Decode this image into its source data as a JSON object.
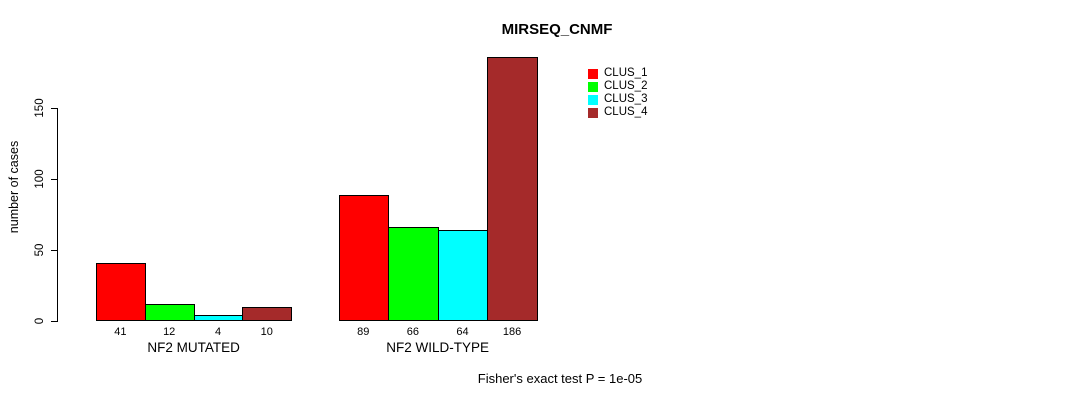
{
  "title": "MIRSEQ_CNMF",
  "y_axis_label": "number of cases",
  "annotation": "Fisher's exact test P = 1e-05",
  "colors": {
    "background": "#FFFFFF",
    "axis": "#000000",
    "clus_1": "#FF0000",
    "clus_2": "#00FF00",
    "clus_3": "#00FFFF",
    "clus_4": "#A52A2A"
  },
  "chart_data": {
    "type": "bar",
    "title": "MIRSEQ_CNMF",
    "xlabel": "",
    "ylabel": "number of cases",
    "categories": [
      "NF2 MUTATED",
      "NF2 WILD-TYPE"
    ],
    "series": [
      {
        "name": "CLUS_1",
        "color": "#FF0000",
        "values": [
          41,
          89
        ]
      },
      {
        "name": "CLUS_2",
        "color": "#00FF00",
        "values": [
          12,
          66
        ]
      },
      {
        "name": "CLUS_3",
        "color": "#00FFFF",
        "values": [
          4,
          64
        ]
      },
      {
        "name": "CLUS_4",
        "color": "#A52A2A",
        "values": [
          10,
          186
        ]
      }
    ],
    "bar_value_labels": [
      [
        41,
        12,
        4,
        10
      ],
      [
        89,
        66,
        64,
        186
      ]
    ],
    "yticks": [
      0,
      50,
      100,
      150
    ],
    "ylim": [
      0,
      150
    ],
    "grid": false,
    "legend_position": "top-right",
    "legend_entries": [
      "CLUS_1",
      "CLUS_2",
      "CLUS_3",
      "CLUS_4"
    ],
    "annotation": "Fisher's exact test P = 1e-05"
  }
}
